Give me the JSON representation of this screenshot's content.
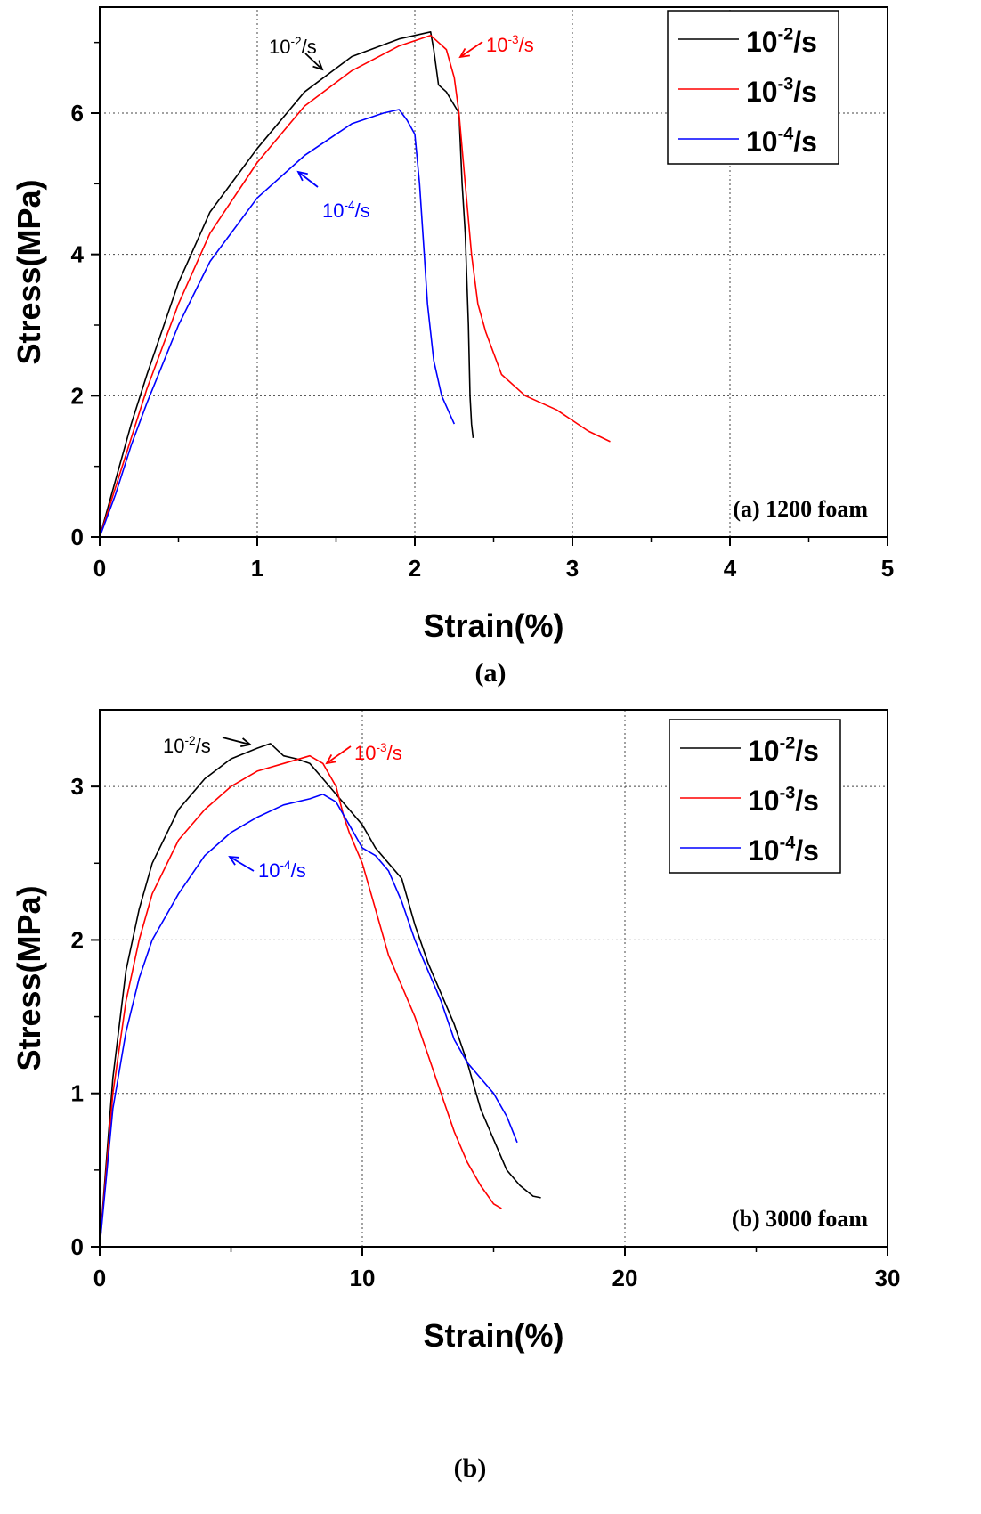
{
  "chart_data": [
    {
      "type": "line",
      "panel_caption": "(a)",
      "annotation": "(a) 1200 foam",
      "xlabel": "Strain(%)",
      "ylabel": "Stress(MPa)",
      "xlim": [
        0,
        5
      ],
      "ylim": [
        0,
        7.5
      ],
      "x_ticks": [
        "0",
        "1",
        "2",
        "3",
        "4",
        "5"
      ],
      "y_ticks": [
        "0",
        "2",
        "4",
        "6"
      ],
      "grid": true,
      "legend_position": "top-right",
      "series": [
        {
          "name": "10^-2/s",
          "base": "10",
          "exp": "-2",
          "unit": "/s",
          "color": "#000000",
          "x": [
            0,
            0.1,
            0.2,
            0.3,
            0.5,
            0.7,
            1.0,
            1.3,
            1.6,
            1.9,
            2.1,
            2.12,
            2.15,
            2.2,
            2.28,
            2.3,
            2.32,
            2.34,
            2.35,
            2.36,
            2.37
          ],
          "y": [
            0,
            0.8,
            1.6,
            2.3,
            3.6,
            4.6,
            5.5,
            6.3,
            6.8,
            7.05,
            7.15,
            6.9,
            6.4,
            6.3,
            6.0,
            5.0,
            4.3,
            3.0,
            2.0,
            1.6,
            1.4
          ]
        },
        {
          "name": "10^-3/s",
          "base": "10",
          "exp": "-3",
          "unit": "/s",
          "color": "#ff0000",
          "x": [
            0,
            0.1,
            0.2,
            0.3,
            0.5,
            0.7,
            1.0,
            1.3,
            1.6,
            1.9,
            2.1,
            2.15,
            2.2,
            2.25,
            2.28,
            2.32,
            2.36,
            2.4,
            2.45,
            2.55,
            2.7,
            2.9,
            3.1,
            3.24
          ],
          "y": [
            0,
            0.7,
            1.4,
            2.1,
            3.3,
            4.3,
            5.3,
            6.1,
            6.6,
            6.95,
            7.1,
            7.0,
            6.9,
            6.5,
            6.0,
            5.0,
            4.0,
            3.3,
            2.9,
            2.3,
            2.0,
            1.8,
            1.5,
            1.35
          ]
        },
        {
          "name": "10^-4/s",
          "base": "10",
          "exp": "-4",
          "unit": "/s",
          "color": "#0000ff",
          "x": [
            0,
            0.1,
            0.2,
            0.3,
            0.5,
            0.7,
            1.0,
            1.3,
            1.6,
            1.8,
            1.9,
            1.95,
            2.0,
            2.03,
            2.06,
            2.08,
            2.12,
            2.17,
            2.23,
            2.25
          ],
          "y": [
            0,
            0.6,
            1.3,
            1.9,
            3.0,
            3.9,
            4.8,
            5.4,
            5.85,
            6.0,
            6.05,
            5.9,
            5.7,
            5.0,
            4.0,
            3.3,
            2.5,
            2.0,
            1.7,
            1.6
          ]
        }
      ],
      "callouts": [
        {
          "series": 0,
          "base": "10",
          "exp": "-2",
          "unit": "/s",
          "color": "#000000"
        },
        {
          "series": 1,
          "base": "10",
          "exp": "-3",
          "unit": "/s",
          "color": "#ff0000"
        },
        {
          "series": 2,
          "base": "10",
          "exp": "-4",
          "unit": "/s",
          "color": "#0000ff"
        }
      ]
    },
    {
      "type": "line",
      "panel_caption": "(b)",
      "annotation": "(b) 3000 foam",
      "xlabel": "Strain(%)",
      "ylabel": "Stress(MPa)",
      "xlim": [
        0,
        30
      ],
      "ylim": [
        0,
        3.5
      ],
      "x_ticks": [
        "0",
        "10",
        "20",
        "30"
      ],
      "y_ticks": [
        "0",
        "1",
        "2",
        "3"
      ],
      "grid": true,
      "legend_position": "top-right",
      "series": [
        {
          "name": "10^-2/s",
          "base": "10",
          "exp": "-2",
          "unit": "/s",
          "color": "#000000",
          "x": [
            0,
            0.5,
            1,
            1.5,
            2,
            3,
            4,
            5,
            6,
            6.5,
            7,
            7.5,
            8,
            8.5,
            9,
            9.5,
            10,
            10.5,
            11,
            11.5,
            12,
            12.5,
            13,
            13.5,
            14,
            14.5,
            15,
            15.5,
            16,
            16.5,
            16.8
          ],
          "y": [
            0,
            1.1,
            1.8,
            2.2,
            2.5,
            2.85,
            3.05,
            3.18,
            3.25,
            3.28,
            3.2,
            3.18,
            3.15,
            3.05,
            2.95,
            2.85,
            2.75,
            2.6,
            2.5,
            2.4,
            2.1,
            1.85,
            1.65,
            1.45,
            1.2,
            0.9,
            0.7,
            0.5,
            0.4,
            0.33,
            0.32
          ]
        },
        {
          "name": "10^-3/s",
          "base": "10",
          "exp": "-3",
          "unit": "/s",
          "color": "#ff0000",
          "x": [
            0,
            0.5,
            1,
            1.5,
            2,
            3,
            4,
            5,
            6,
            7,
            8,
            8.5,
            9,
            9.3,
            9.5,
            10,
            10.5,
            11,
            11.5,
            12,
            12.5,
            13,
            13.5,
            14,
            14.5,
            15,
            15.3
          ],
          "y": [
            0,
            1.0,
            1.6,
            2.0,
            2.3,
            2.65,
            2.85,
            3.0,
            3.1,
            3.15,
            3.2,
            3.15,
            3.0,
            2.8,
            2.7,
            2.5,
            2.2,
            1.9,
            1.7,
            1.5,
            1.25,
            1.0,
            0.75,
            0.55,
            0.4,
            0.28,
            0.25
          ]
        },
        {
          "name": "10^-4/s",
          "base": "10",
          "exp": "-4",
          "unit": "/s",
          "color": "#0000ff",
          "x": [
            0,
            0.5,
            1,
            1.5,
            2,
            3,
            4,
            5,
            6,
            7,
            8,
            8.5,
            9,
            9.5,
            10,
            10.5,
            11,
            11.5,
            12,
            12.5,
            13,
            13.5,
            14,
            14.5,
            15,
            15.5,
            15.9
          ],
          "y": [
            0,
            0.9,
            1.4,
            1.75,
            2.0,
            2.3,
            2.55,
            2.7,
            2.8,
            2.88,
            2.92,
            2.95,
            2.9,
            2.75,
            2.6,
            2.55,
            2.45,
            2.25,
            2.0,
            1.8,
            1.6,
            1.35,
            1.2,
            1.1,
            1.0,
            0.85,
            0.68
          ]
        }
      ],
      "callouts": [
        {
          "series": 0,
          "base": "10",
          "exp": "-2",
          "unit": "/s",
          "color": "#000000"
        },
        {
          "series": 1,
          "base": "10",
          "exp": "-3",
          "unit": "/s",
          "color": "#ff0000"
        },
        {
          "series": 2,
          "base": "10",
          "exp": "-4",
          "unit": "/s",
          "color": "#0000ff"
        }
      ]
    }
  ]
}
